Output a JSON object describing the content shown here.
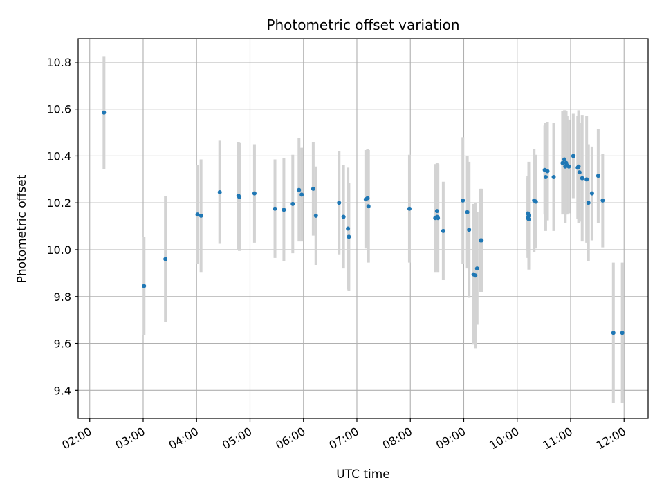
{
  "chart_data": {
    "type": "scatter",
    "title": "Photometric offset variation",
    "xlabel": "UTC time",
    "ylabel": "Photometric offset",
    "xlim": [
      "01:47",
      "12:27"
    ],
    "ylim": [
      9.28,
      10.9
    ],
    "x_ticks": [
      "02:00",
      "03:00",
      "04:00",
      "05:00",
      "06:00",
      "07:00",
      "08:00",
      "09:00",
      "10:00",
      "11:00",
      "12:00"
    ],
    "y_ticks": [
      9.4,
      9.6,
      9.8,
      10.0,
      10.2,
      10.4,
      10.6,
      10.8
    ],
    "grid": true,
    "marker_color": "#1f77b4",
    "errorbar_color": "#d3d3d3",
    "series": [
      {
        "x": [
          "02:16",
          "03:01",
          "03:25",
          "04:01",
          "04:05",
          "04:26",
          "04:47",
          "04:48",
          "05:05",
          "05:28",
          "05:38",
          "05:48",
          "05:55",
          "05:58",
          "06:11",
          "06:14",
          "06:40",
          "06:45",
          "06:50",
          "06:51",
          "07:10",
          "07:12",
          "07:13",
          "07:59",
          "08:28",
          "08:30",
          "08:30",
          "08:31",
          "08:37",
          "08:59",
          "09:04",
          "09:06",
          "09:11",
          "09:13",
          "09:15",
          "09:19",
          "09:20",
          "10:12",
          "10:12",
          "10:13",
          "10:13",
          "10:19",
          "10:21",
          "10:31",
          "10:32",
          "10:34",
          "10:41",
          "10:51",
          "10:53",
          "10:54",
          "10:55",
          "10:56",
          "10:58",
          "11:03",
          "11:08",
          "11:09",
          "11:10",
          "11:13",
          "11:18",
          "11:20",
          "11:24",
          "11:31",
          "11:36",
          "11:48",
          "11:58"
        ],
        "y": [
          10.585,
          9.845,
          9.96,
          10.15,
          10.145,
          10.245,
          10.23,
          10.225,
          10.24,
          10.175,
          10.17,
          10.195,
          10.255,
          10.235,
          10.26,
          10.145,
          10.2,
          10.14,
          10.09,
          10.055,
          10.215,
          10.22,
          10.185,
          10.175,
          10.135,
          10.14,
          10.165,
          10.135,
          10.08,
          10.21,
          10.16,
          10.085,
          9.895,
          9.89,
          9.92,
          10.04,
          10.04,
          10.155,
          10.135,
          10.145,
          10.13,
          10.21,
          10.205,
          10.34,
          10.31,
          10.335,
          10.31,
          10.37,
          10.385,
          10.355,
          10.37,
          10.36,
          10.355,
          10.4,
          10.35,
          10.355,
          10.33,
          10.305,
          10.3,
          10.2,
          10.24,
          10.315,
          10.21,
          9.645,
          9.645
        ],
        "err": [
          0.24,
          0.21,
          0.27,
          0.21,
          0.24,
          0.22,
          0.23,
          0.23,
          0.21,
          0.21,
          0.22,
          0.21,
          0.22,
          0.2,
          0.2,
          0.21,
          0.22,
          0.22,
          0.26,
          0.23,
          0.21,
          0.21,
          0.24,
          0.23,
          0.23,
          0.23,
          0.2,
          0.23,
          0.21,
          0.27,
          0.24,
          0.29,
          0.3,
          0.31,
          0.24,
          0.22,
          0.22,
          0.16,
          0.17,
          0.23,
          0.2,
          0.22,
          0.2,
          0.19,
          0.23,
          0.21,
          0.23,
          0.22,
          0.21,
          0.24,
          0.22,
          0.21,
          0.2,
          0.18,
          0.22,
          0.24,
          0.21,
          0.27,
          0.27,
          0.25,
          0.2,
          0.2,
          0.2,
          0.3,
          0.3
        ]
      }
    ]
  }
}
